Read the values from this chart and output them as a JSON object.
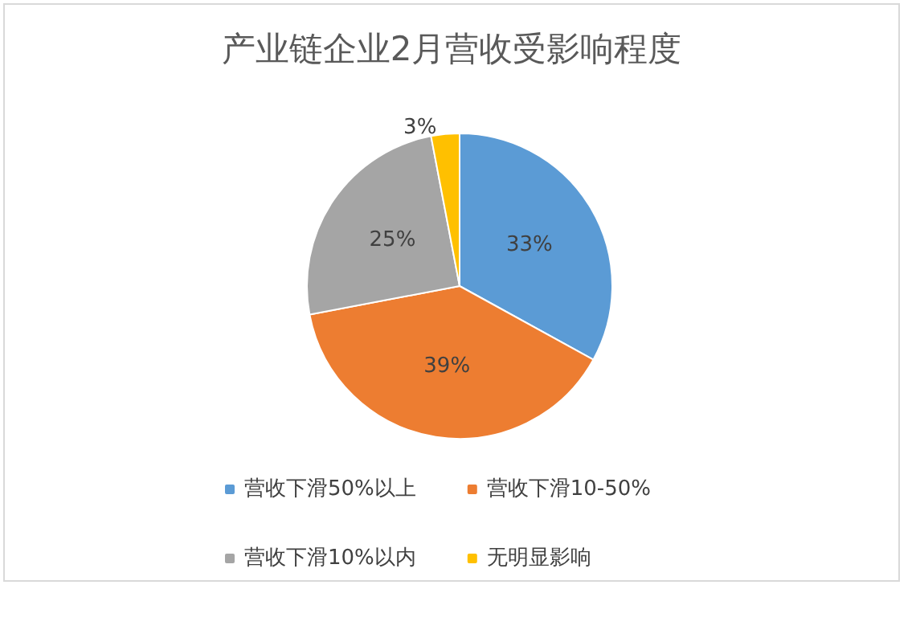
{
  "chart_data": {
    "type": "pie",
    "title": "产业链企业2月营收受影响程度",
    "categories": [
      "营收下滑50%以上",
      "营收下滑10-50%",
      "营收下滑10%以内",
      "无明显影响"
    ],
    "values": [
      33,
      39,
      25,
      3
    ],
    "colors": [
      "#5b9bd5",
      "#ed7d31",
      "#a5a5a5",
      "#ffc000"
    ],
    "value_labels": [
      "33%",
      "39%",
      "25%",
      "3%"
    ],
    "legend": "bottom"
  }
}
